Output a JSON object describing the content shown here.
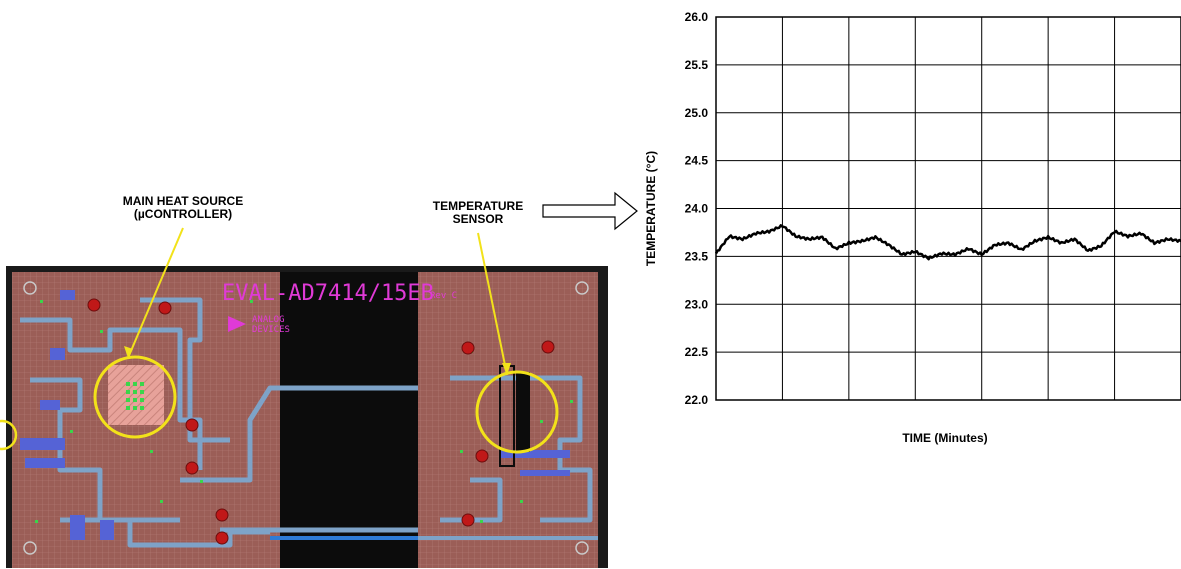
{
  "annotations": {
    "heat_source_line1": "MAIN HEAT SOURCE",
    "heat_source_line2": "(µCONTROLLER)",
    "sensor_line1": "TEMPERATURE",
    "sensor_line2": "SENSOR"
  },
  "board": {
    "silkscreen_title": "EVAL-AD7414/15EB",
    "silkscreen_rev": "Rev C",
    "logo_text_1": "ANALOG",
    "logo_text_2": "DEVICES"
  },
  "colors": {
    "pcb": "#9b5e57",
    "trace": "#7ea3c8",
    "highlight": "#f2e21a",
    "silkscreen": "#e03ad6",
    "pad": "#c01818"
  },
  "chart_data": {
    "type": "line",
    "ylabel": "TEMPERATURE (°C)",
    "xlabel": "TIME (Minutes)",
    "ylim": [
      22.0,
      26.0
    ],
    "y_ticks": [
      "22.0",
      "22.5",
      "23.0",
      "23.5",
      "24.0",
      "24.5",
      "25.0",
      "25.5",
      "26.0"
    ],
    "x_grid_divisions": 7,
    "grid": true,
    "series": [
      {
        "x": [
          0,
          0.2,
          0.4,
          0.6,
          0.8,
          1.0,
          1.2,
          1.4,
          1.6,
          1.8,
          2.0,
          2.2,
          2.4,
          2.6,
          2.8,
          3.0,
          3.2,
          3.4,
          3.6,
          3.8,
          4.0,
          4.2,
          4.4,
          4.6,
          4.8,
          5.0,
          5.2,
          5.4,
          5.6,
          5.8,
          6.0,
          6.2,
          6.4,
          6.6,
          6.8,
          7.0
        ],
        "values": [
          23.53,
          23.71,
          23.68,
          23.74,
          23.76,
          23.82,
          23.71,
          23.68,
          23.7,
          23.58,
          23.64,
          23.66,
          23.7,
          23.62,
          23.52,
          23.55,
          23.48,
          23.53,
          23.52,
          23.58,
          23.52,
          23.62,
          23.64,
          23.57,
          23.66,
          23.7,
          23.64,
          23.68,
          23.56,
          23.61,
          23.76,
          23.71,
          23.74,
          23.64,
          23.68,
          23.66
        ]
      }
    ]
  }
}
